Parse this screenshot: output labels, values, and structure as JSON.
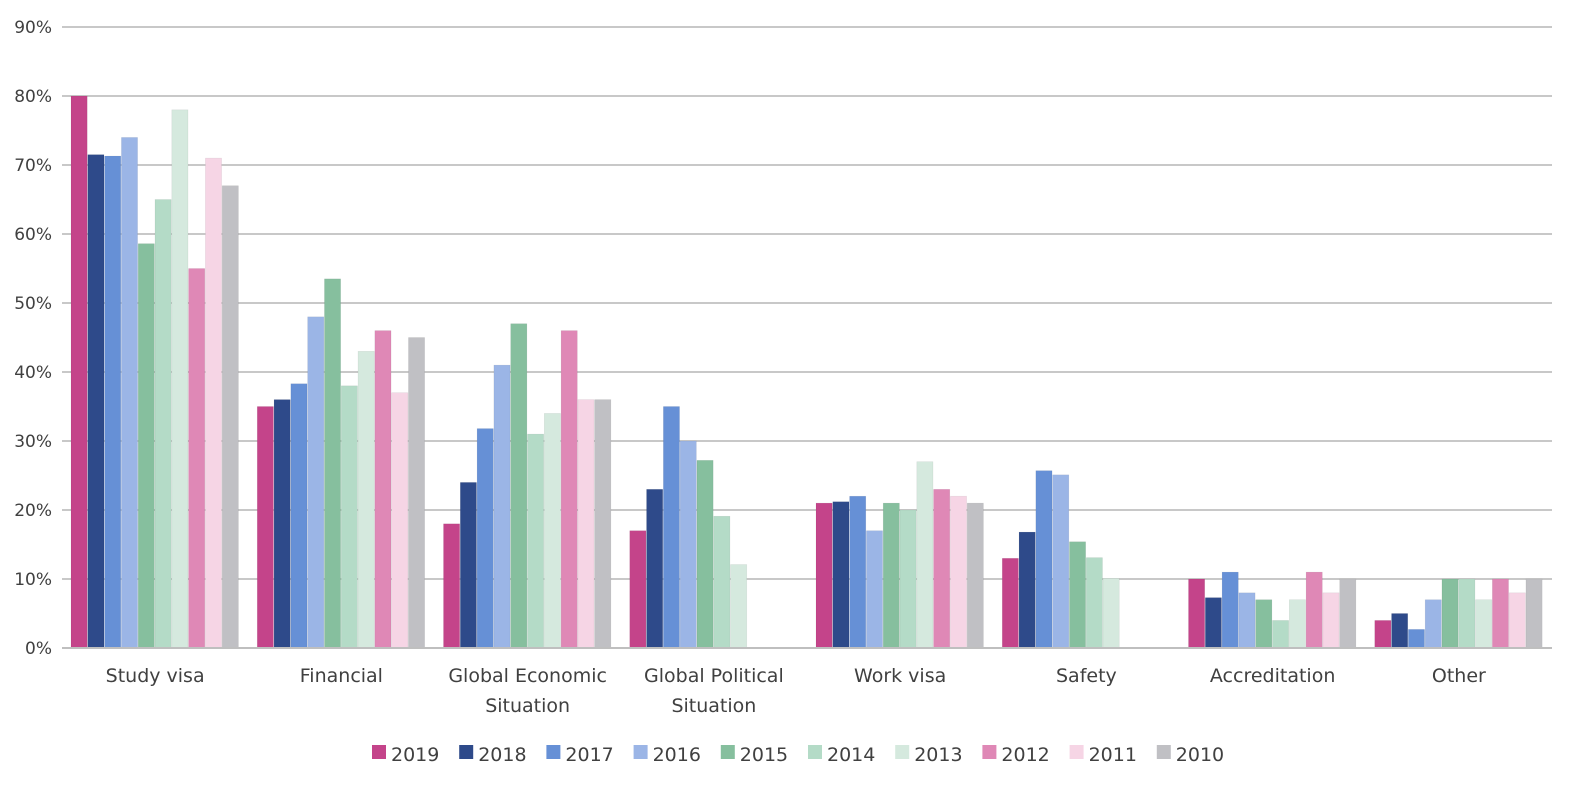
{
  "chart_data": {
    "type": "bar",
    "title": "",
    "xlabel": "",
    "ylabel": "",
    "ylim": [
      0,
      90
    ],
    "y_ticks": [
      "0%",
      "10%",
      "20%",
      "30%",
      "40%",
      "50%",
      "60%",
      "70%",
      "80%",
      "90%"
    ],
    "grid": true,
    "legend_position": "bottom",
    "categories": [
      "Study visa",
      "Financial",
      "Global Economic Situation",
      "Global Political Situation",
      "Work visa",
      "Safety",
      "Accreditation",
      "Other"
    ],
    "series": [
      {
        "name": "2019",
        "color": "#c4448a",
        "values": [
          80,
          35,
          18,
          17,
          21,
          13,
          10,
          4
        ]
      },
      {
        "name": "2018",
        "color": "#2e4a8a",
        "values": [
          71.5,
          36,
          24,
          23,
          21.2,
          16.8,
          7.3,
          5
        ]
      },
      {
        "name": "2017",
        "color": "#6690d6",
        "values": [
          71.3,
          38.3,
          31.8,
          35,
          22,
          25.7,
          11,
          2.7
        ]
      },
      {
        "name": "2016",
        "color": "#9bb5e6",
        "values": [
          74,
          48,
          41,
          30,
          17,
          25.1,
          8,
          7
        ]
      },
      {
        "name": "2015",
        "color": "#86bf9e",
        "values": [
          58.6,
          53.5,
          47,
          27.2,
          21,
          15.4,
          7,
          10
        ]
      },
      {
        "name": "2014",
        "color": "#b4dbc7",
        "values": [
          65,
          38,
          31,
          19.1,
          20,
          13.1,
          4,
          10
        ]
      },
      {
        "name": "2013",
        "color": "#d5e9de",
        "values": [
          78,
          43,
          34,
          12.1,
          27,
          10.1,
          7,
          7
        ]
      },
      {
        "name": "2012",
        "color": "#df88b6",
        "values": [
          55,
          46,
          46,
          null,
          23,
          null,
          11,
          10
        ]
      },
      {
        "name": "2011",
        "color": "#f6d5e5",
        "values": [
          71,
          37,
          36,
          null,
          22,
          null,
          8,
          8
        ]
      },
      {
        "name": "2010",
        "color": "#c0c0c4",
        "values": [
          67,
          45,
          36,
          null,
          21,
          null,
          10,
          10
        ]
      }
    ]
  }
}
